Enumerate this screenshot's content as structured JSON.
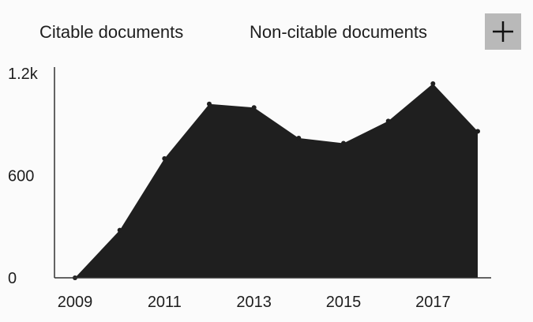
{
  "legend": {
    "citable_label": "Citable documents",
    "noncitable_label": "Non-citable documents"
  },
  "expand_button": {
    "icon": "plus-icon"
  },
  "colors": {
    "area_fill": "#1f1f1f",
    "axis": "#333333",
    "button_bg": "#b9b9b9",
    "background": "#fbfbfb"
  },
  "chart_data": {
    "type": "area",
    "x": [
      2009,
      2010,
      2011,
      2012,
      2013,
      2014,
      2015,
      2016,
      2017,
      2018
    ],
    "series": [
      {
        "name": "Citable documents",
        "values": [
          0,
          280,
          700,
          1020,
          1000,
          820,
          790,
          920,
          1140,
          860
        ]
      }
    ],
    "x_tick_labels": [
      "2009",
      "2011",
      "2013",
      "2015",
      "2017"
    ],
    "y_tick_labels": [
      "0",
      "600",
      "1.2k"
    ],
    "y_ticks": [
      0,
      600,
      1200
    ],
    "xlim": [
      2009,
      2018
    ],
    "ylim": [
      0,
      1200
    ],
    "grid": false,
    "legend_position": "top"
  }
}
